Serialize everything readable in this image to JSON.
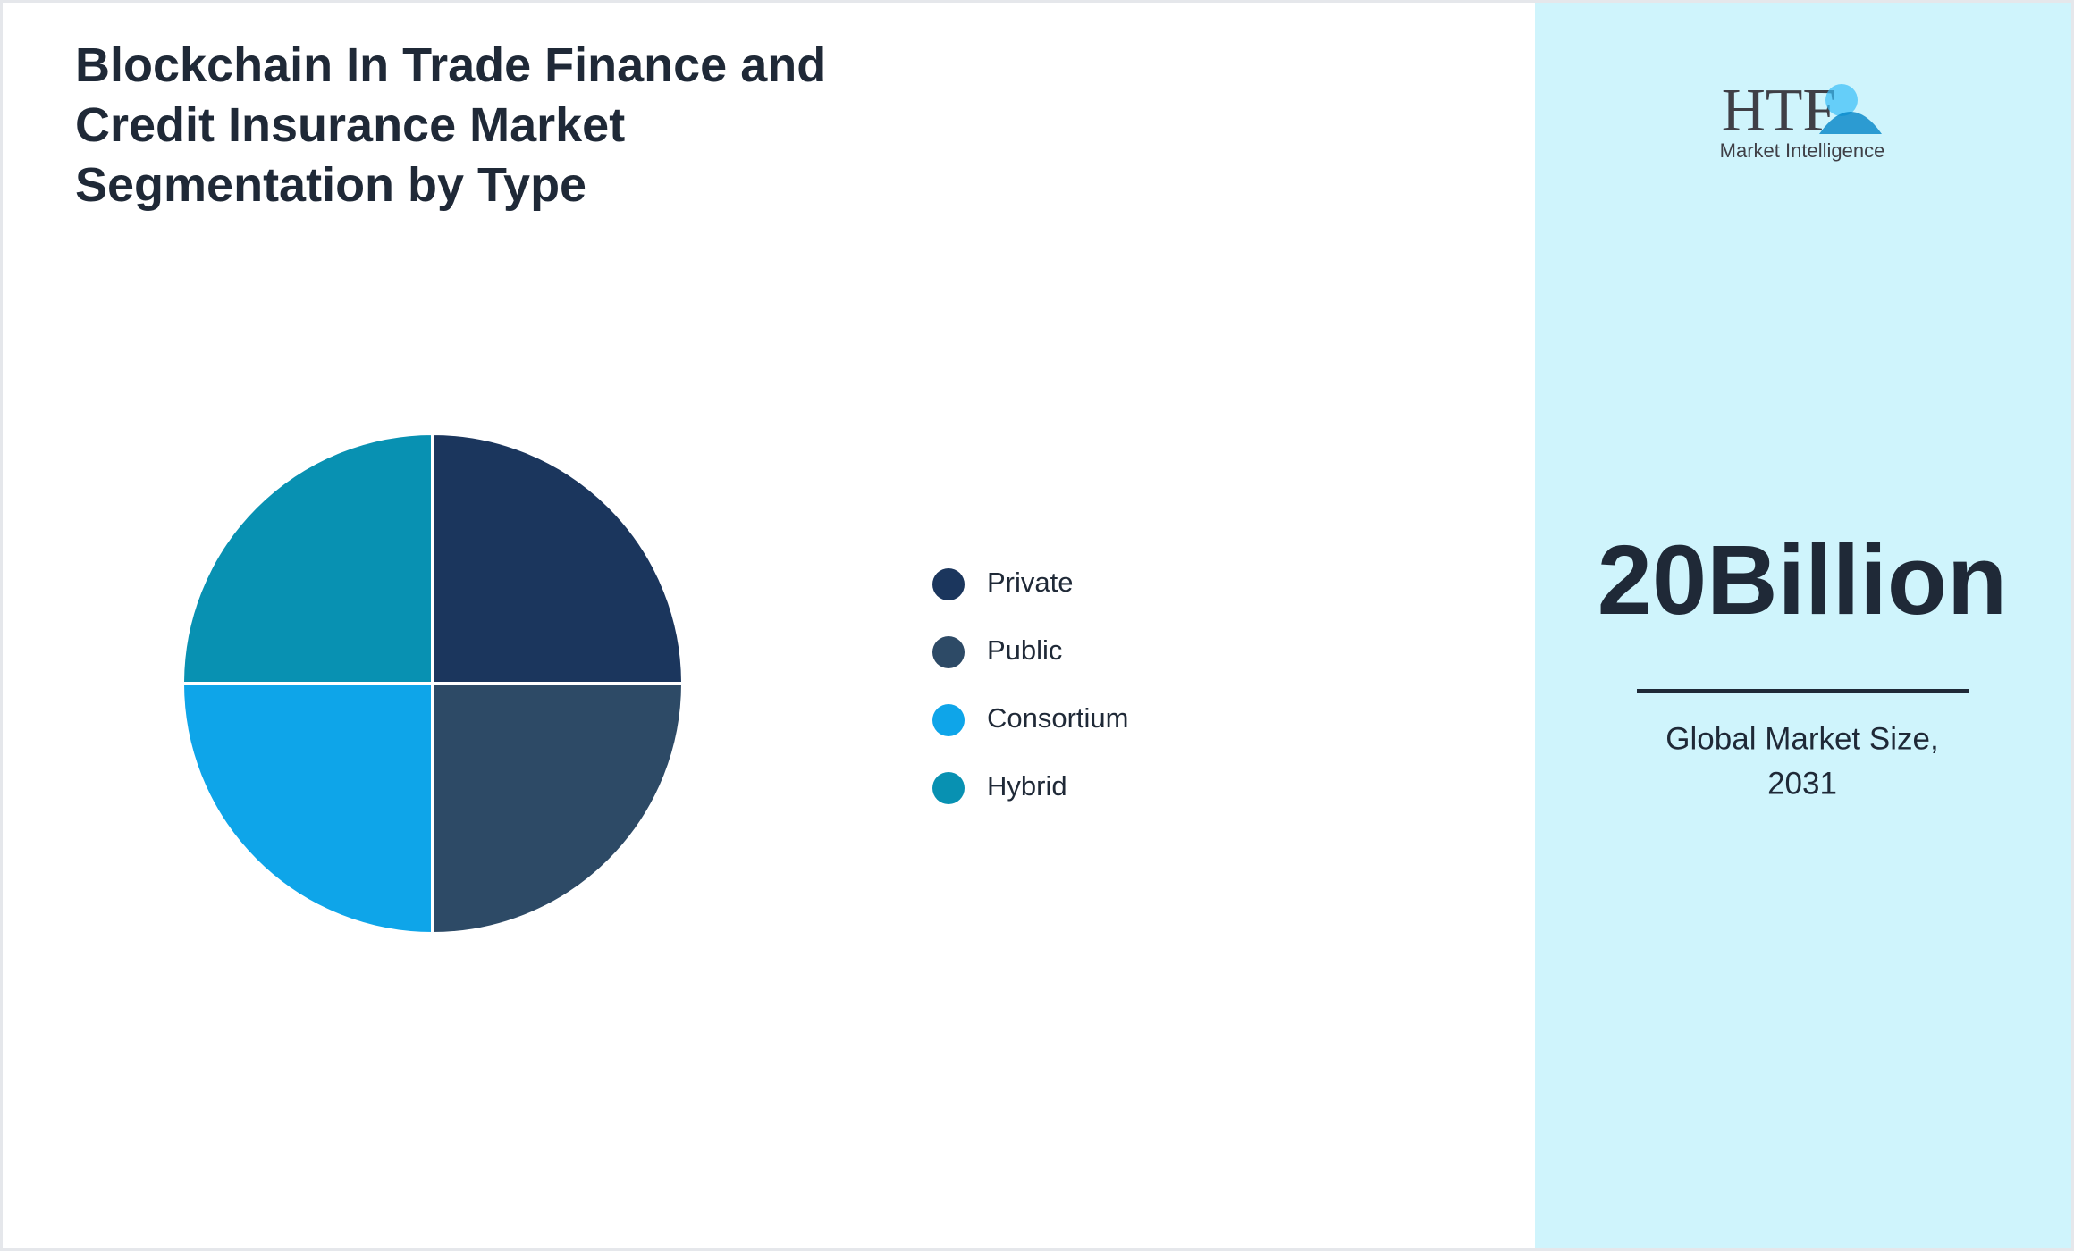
{
  "chart_data": {
    "type": "pie",
    "title": "Blockchain In Trade Finance and Credit Insurance Market Segmentation by Type",
    "categories": [
      "Private",
      "Public",
      "Consortium",
      "Hybrid"
    ],
    "values": [
      25,
      25,
      25,
      25
    ],
    "colors": [
      "#1b365d",
      "#2d4a66",
      "#0ea5e9",
      "#0891b2"
    ],
    "legend": "right"
  },
  "side_panel": {
    "value": "20Billion",
    "caption_lines": [
      "Global Market Size,",
      "2031"
    ]
  },
  "logo": {
    "mark": "HTF",
    "text": "Market Intelligence"
  }
}
